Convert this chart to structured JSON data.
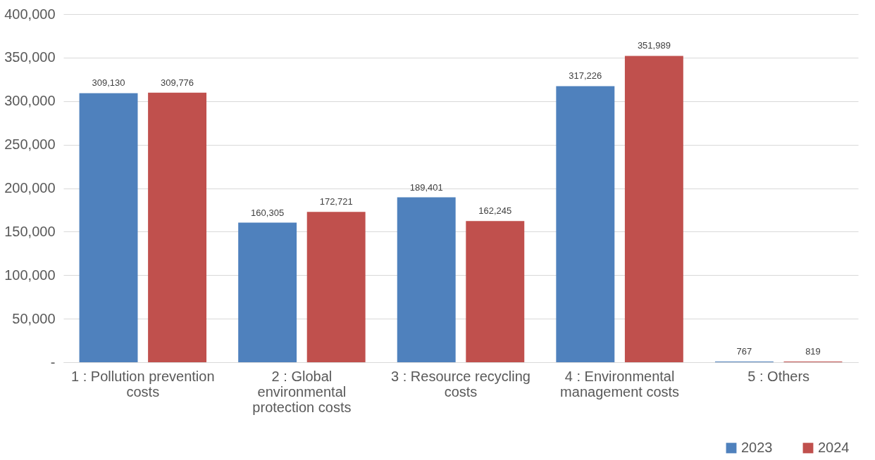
{
  "chart_data": {
    "type": "bar",
    "categories": [
      "1 : Pollution prevention costs",
      "2 : Global environmental protection costs",
      "3 : Resource recycling costs",
      "4 : Environmental management costs",
      "5 : Others"
    ],
    "series": [
      {
        "name": "2023",
        "color": "#4f81bd",
        "values": [
          309130,
          160305,
          189401,
          317226,
          767
        ],
        "value_labels": [
          "309,130",
          "160,305",
          "189,401",
          "317,226",
          "767"
        ]
      },
      {
        "name": "2024",
        "color": "#c0504d",
        "values": [
          309776,
          172721,
          162245,
          351989,
          819
        ],
        "value_labels": [
          "309,776",
          "172,721",
          "162,245",
          "351,989",
          "819"
        ]
      }
    ],
    "ylim": [
      0,
      400000
    ],
    "yticks": [
      {
        "value": 0,
        "label": "-"
      },
      {
        "value": 50000,
        "label": "50,000"
      },
      {
        "value": 100000,
        "label": "100,000"
      },
      {
        "value": 150000,
        "label": "150,000"
      },
      {
        "value": 200000,
        "label": "200,000"
      },
      {
        "value": 250000,
        "label": "250,000"
      },
      {
        "value": 300000,
        "label": "300,000"
      },
      {
        "value": 350000,
        "label": "350,000"
      },
      {
        "value": 400000,
        "label": "400,000"
      }
    ],
    "grid": "y",
    "legend": "bottom right"
  }
}
